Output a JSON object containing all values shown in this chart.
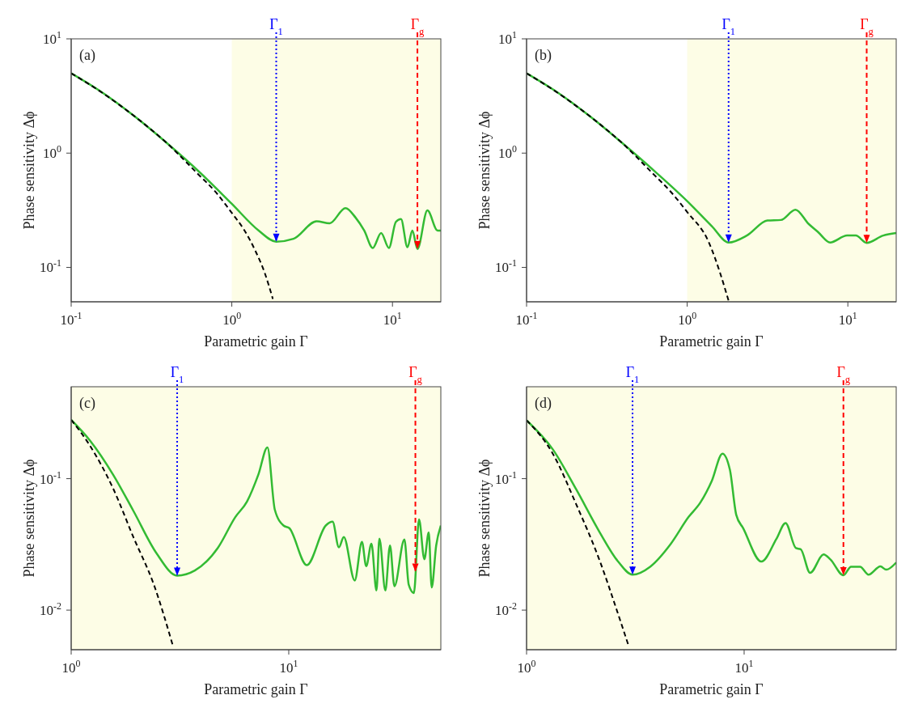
{
  "chart_data": [
    {
      "type": "line",
      "xlabel": "Parametric gain Γ",
      "ylabel": "Phase sensitivity Δϕ",
      "annotations": [
        "(a)"
      ],
      "xlim": [
        0.1,
        20
      ],
      "ylim": [
        0.05,
        10
      ],
      "log": "xy",
      "xticks": [
        {
          "value": 0.1,
          "label": "10$^{-1}$"
        },
        {
          "value": 1,
          "label": "10$^{0}$"
        },
        {
          "value": 10,
          "label": "10$^{1}$"
        }
      ],
      "yticks": [
        {
          "value": 0.1,
          "label": "10$^{-1}$"
        },
        {
          "value": 1,
          "label": "10$^{0}$"
        },
        {
          "value": 10,
          "label": "10$^{1}$"
        }
      ],
      "series": [
        {
          "color": "#33bb33",
          "line_style": "solid",
          "x": [
            0.1,
            0.152,
            0.25,
            0.39,
            0.645,
            1.0,
            1.47,
            1.89,
            2.42,
            3.37,
            4.06,
            5.1,
            5.89,
            6.67,
            7.54,
            8.5,
            9.5,
            10.5,
            11.3,
            12.4,
            13.3,
            14.3,
            16.5,
            19.1,
            20
          ],
          "values": [
            5.0,
            3.48,
            2.08,
            1.24,
            0.66,
            0.36,
            0.21,
            0.168,
            0.178,
            0.253,
            0.243,
            0.33,
            0.273,
            0.21,
            0.148,
            0.2,
            0.148,
            0.25,
            0.265,
            0.15,
            0.21,
            0.145,
            0.315,
            0.21,
            0.21
          ]
        },
        {
          "color": "#000000",
          "line_style": "dashed",
          "x": [
            0.1,
            0.15,
            0.25,
            0.4,
            0.6,
            0.8,
            1.0,
            1.2,
            1.4,
            1.6,
            1.8
          ],
          "values": [
            5.0,
            3.5,
            2.08,
            1.2,
            0.68,
            0.45,
            0.3,
            0.21,
            0.14,
            0.09,
            0.053
          ]
        }
      ],
      "bands": [
        {
          "axis": "x",
          "from": 1,
          "to": 20,
          "color": "#fdfde6"
        }
      ],
      "ref_lines": [
        {
          "axis": "x",
          "value": 1.89,
          "label": "Γ$_{1}$",
          "color": "#0000ff",
          "line_style": "dotted"
        },
        {
          "axis": "x",
          "value": 14.3,
          "label": "Γ$_{g}$",
          "color": "#ff0000",
          "line_style": "dashed"
        }
      ]
    },
    {
      "type": "line",
      "xlabel": "Parametric gain Γ",
      "ylabel": "Phase sensitivity Δϕ",
      "annotations": [
        "(b)"
      ],
      "xlim": [
        0.1,
        20
      ],
      "ylim": [
        0.05,
        10
      ],
      "log": "xy",
      "xticks": [
        {
          "value": 0.1,
          "label": "10$^{-1}$"
        },
        {
          "value": 1,
          "label": "10$^{0}$"
        },
        {
          "value": 10,
          "label": "10$^{1}$"
        }
      ],
      "yticks": [
        {
          "value": 0.1,
          "label": "10$^{-1}$"
        },
        {
          "value": 1,
          "label": "10$^{0}$"
        },
        {
          "value": 10,
          "label": "10$^{1}$"
        }
      ],
      "series": [
        {
          "color": "#33bb33",
          "line_style": "solid",
          "x": [
            0.1,
            0.152,
            0.25,
            0.39,
            0.645,
            1.0,
            1.42,
            1.81,
            2.35,
            3.16,
            3.83,
            4.72,
            5.7,
            6.5,
            7.75,
            9.9,
            11.2,
            13.1,
            16.6,
            20
          ],
          "values": [
            5.0,
            3.48,
            2.08,
            1.24,
            0.67,
            0.38,
            0.23,
            0.165,
            0.19,
            0.257,
            0.26,
            0.32,
            0.24,
            0.205,
            0.165,
            0.19,
            0.19,
            0.164,
            0.19,
            0.2
          ]
        },
        {
          "color": "#000000",
          "line_style": "dashed",
          "x": [
            0.1,
            0.15,
            0.25,
            0.4,
            0.6,
            0.8,
            1.0,
            1.36,
            1.6,
            1.81
          ],
          "values": [
            5.0,
            3.5,
            2.08,
            1.2,
            0.68,
            0.45,
            0.305,
            0.167,
            0.09,
            0.051
          ]
        }
      ],
      "bands": [
        {
          "axis": "x",
          "from": 1,
          "to": 20,
          "color": "#fdfde6"
        }
      ],
      "ref_lines": [
        {
          "axis": "x",
          "value": 1.81,
          "label": "Γ$_{1}$",
          "color": "#0000ff",
          "line_style": "dotted"
        },
        {
          "axis": "x",
          "value": 13.1,
          "label": "Γ$_{g}$",
          "color": "#ff0000",
          "line_style": "dashed"
        }
      ]
    },
    {
      "type": "line",
      "xlabel": "Parametric gain Γ",
      "ylabel": "Phase sensitivity Δϕ",
      "annotations": [
        "(c)"
      ],
      "xlim": [
        1,
        50
      ],
      "ylim": [
        0.005,
        0.5
      ],
      "log": "xy",
      "xticks": [
        {
          "value": 1,
          "label": "10$^{0}$"
        },
        {
          "value": 10,
          "label": "10$^{1}$"
        }
      ],
      "yticks": [
        {
          "value": 0.01,
          "label": "10$^{-2}$"
        },
        {
          "value": 0.1,
          "label": "10$^{-1}$"
        }
      ],
      "series": [
        {
          "color": "#33bb33",
          "line_style": "solid",
          "x": [
            1,
            1.22,
            1.56,
            1.93,
            2.47,
            3.07,
            3.7,
            4.72,
            5.68,
            6.43,
            7.26,
            7.98,
            8.63,
            9.46,
            10.06,
            12.1,
            14.8,
            15.9,
            17,
            17.9,
            20.1,
            21.7,
            22.7,
            24,
            25.3,
            26.1,
            27.8,
            29.2,
            30.6,
            34,
            35.6,
            37.6,
            39.7,
            42,
            44,
            45.4,
            47.6,
            50
          ],
          "values": [
            0.28,
            0.195,
            0.107,
            0.057,
            0.027,
            0.0183,
            0.02,
            0.0297,
            0.051,
            0.067,
            0.108,
            0.173,
            0.058,
            0.044,
            0.042,
            0.022,
            0.044,
            0.047,
            0.03,
            0.036,
            0.0168,
            0.033,
            0.0216,
            0.032,
            0.0141,
            0.035,
            0.0141,
            0.031,
            0.0152,
            0.0345,
            0.0156,
            0.0135,
            0.049,
            0.0244,
            0.039,
            0.0149,
            0.031,
            0.044
          ]
        },
        {
          "color": "#000000",
          "line_style": "dashed",
          "x": [
            1,
            1.22,
            1.56,
            1.93,
            2.4,
            2.93
          ],
          "values": [
            0.28,
            0.178,
            0.084,
            0.036,
            0.0156,
            0.0054
          ]
        }
      ],
      "bands": [
        {
          "axis": "x",
          "from": 1,
          "to": 50,
          "color": "#fdfde6"
        }
      ],
      "ref_lines": [
        {
          "axis": "x",
          "value": 3.07,
          "label": "Γ$_{1}$",
          "color": "#0000ff",
          "line_style": "dotted"
        },
        {
          "axis": "x",
          "value": 38.2,
          "label": "Γ$_{g}$",
          "color": "#ff0000",
          "line_style": "dashed"
        }
      ]
    },
    {
      "type": "line",
      "xlabel": "Parametric gain Γ",
      "ylabel": "Phase sensitivity Δϕ",
      "annotations": [
        "(d)"
      ],
      "xlim": [
        1,
        50
      ],
      "ylim": [
        0.005,
        0.5
      ],
      "log": "xy",
      "xticks": [
        {
          "value": 1,
          "label": "10$^{0}$"
        },
        {
          "value": 10,
          "label": "10$^{1}$"
        }
      ],
      "yticks": [
        {
          "value": 0.01,
          "label": "10$^{-2}$"
        },
        {
          "value": 0.1,
          "label": "10$^{-1}$"
        }
      ],
      "series": [
        {
          "color": "#33bb33",
          "line_style": "solid",
          "x": [
            1,
            1.32,
            1.69,
            2.17,
            2.62,
            3.07,
            3.7,
            4.6,
            5.55,
            6.3,
            7.1,
            7.95,
            8.6,
            9.2,
            9.9,
            12,
            14.1,
            15.5,
            17.3,
            18.2,
            20.1,
            23.2,
            24.9,
            28.6,
            31,
            34.1,
            37.3,
            42.3,
            45,
            50
          ],
          "values": [
            0.278,
            0.167,
            0.083,
            0.039,
            0.0237,
            0.0186,
            0.0214,
            0.0319,
            0.051,
            0.066,
            0.096,
            0.155,
            0.117,
            0.053,
            0.042,
            0.0234,
            0.035,
            0.046,
            0.0296,
            0.029,
            0.0192,
            0.0265,
            0.0243,
            0.0184,
            0.0214,
            0.0214,
            0.0186,
            0.0215,
            0.0203,
            0.023
          ]
        },
        {
          "color": "#000000",
          "line_style": "dashed",
          "x": [
            1,
            1.32,
            1.69,
            2.17,
            2.62,
            2.95
          ],
          "values": [
            0.278,
            0.155,
            0.064,
            0.0237,
            0.0096,
            0.0053
          ]
        }
      ],
      "bands": [
        {
          "axis": "x",
          "from": 1,
          "to": 50,
          "color": "#fdfde6"
        }
      ],
      "ref_lines": [
        {
          "axis": "x",
          "value": 3.07,
          "label": "Γ$_{1}$",
          "color": "#0000ff",
          "line_style": "dotted"
        },
        {
          "axis": "x",
          "value": 28.6,
          "label": "Γ$_{g}$",
          "color": "#ff0000",
          "line_style": "dashed"
        }
      ]
    }
  ]
}
